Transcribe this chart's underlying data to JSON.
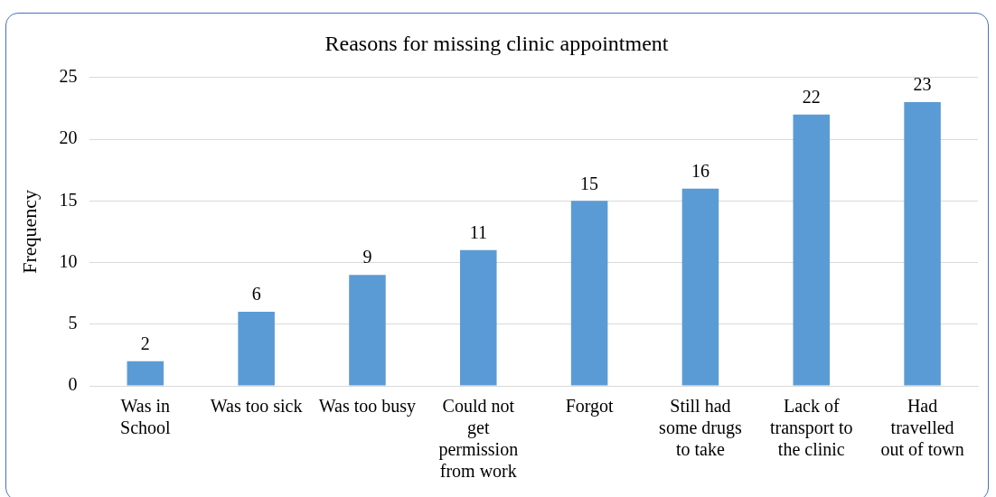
{
  "chart_data": {
    "type": "bar",
    "title": "Reasons for missing clinic appointment",
    "ylabel": "Frequency",
    "categories": [
      "Was in School",
      "Was too sick",
      "Was too busy",
      "Could not get permission from work",
      "Forgot",
      "Still had some drugs to take",
      "Lack of transport to the clinic",
      "Had travelled out of town"
    ],
    "values": [
      2,
      6,
      9,
      11,
      15,
      16,
      22,
      23
    ],
    "color": "#5b9bd5",
    "ylim": [
      0,
      25
    ],
    "yticks": [
      0,
      5,
      10,
      15,
      20,
      25
    ],
    "grid": "y",
    "data_labels": true,
    "legend": false
  }
}
